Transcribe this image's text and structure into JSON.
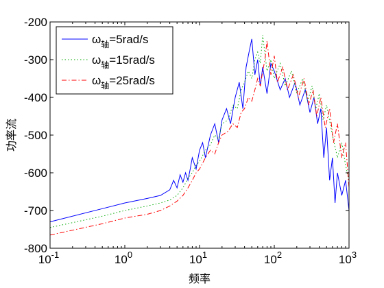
{
  "chart_data": {
    "type": "line",
    "title": "",
    "xlabel": "频率",
    "ylabel": "功率流",
    "xscale": "log",
    "xlim": [
      0.1,
      1000
    ],
    "ylim": [
      -800,
      -200
    ],
    "x_ticks": [
      {
        "value": 0.1,
        "base": "10",
        "exp": "-1"
      },
      {
        "value": 1,
        "base": "10",
        "exp": "0"
      },
      {
        "value": 10,
        "base": "10",
        "exp": "1"
      },
      {
        "value": 100,
        "base": "10",
        "exp": "2"
      },
      {
        "value": 1000,
        "base": "10",
        "exp": "3"
      }
    ],
    "y_ticks": [
      -800,
      -700,
      -600,
      -500,
      -400,
      -300,
      -200
    ],
    "grid": false,
    "legend_position": "top-left",
    "series": [
      {
        "name": "ω轴=5rad/s",
        "legend": {
          "sym": "ω",
          "sub": "轴",
          "rest": "=5rad/s"
        },
        "color": "#0000ff",
        "style": "solid",
        "x": [
          0.1,
          0.5,
          1,
          2,
          3,
          4,
          4.5,
          5,
          5.5,
          6,
          6.5,
          7,
          7.5,
          8,
          9,
          10,
          11,
          12,
          14,
          16,
          18,
          20,
          23,
          26,
          30,
          34,
          38,
          42,
          46,
          50,
          55,
          60,
          65,
          70,
          80,
          90,
          100,
          120,
          140,
          160,
          190,
          220,
          260,
          300,
          340,
          380,
          420,
          460,
          500,
          550,
          600,
          650,
          700,
          800,
          900,
          1000
        ],
        "y": [
          -730,
          -695,
          -680,
          -668,
          -660,
          -645,
          -620,
          -640,
          -605,
          -625,
          -600,
          -620,
          -590,
          -560,
          -590,
          -540,
          -520,
          -560,
          -500,
          -470,
          -520,
          -460,
          -430,
          -470,
          -400,
          -360,
          -430,
          -320,
          -280,
          -245,
          -340,
          -300,
          -370,
          -320,
          -390,
          -310,
          -330,
          -380,
          -350,
          -400,
          -360,
          -420,
          -380,
          -440,
          -400,
          -470,
          -430,
          -560,
          -480,
          -620,
          -560,
          -680,
          -600,
          -660,
          -620,
          -700
        ]
      },
      {
        "name": "ω轴=15rad/s",
        "legend": {
          "sym": "ω",
          "sub": "轴",
          "rest": "=15rad/s"
        },
        "color": "#00aa00",
        "style": "dotted",
        "x": [
          0.1,
          0.5,
          1,
          2,
          3,
          4,
          5,
          6,
          7,
          8,
          9,
          10,
          12,
          14,
          16,
          18,
          20,
          24,
          28,
          32,
          36,
          40,
          45,
          50,
          55,
          60,
          65,
          70,
          80,
          90,
          100,
          120,
          140,
          170,
          200,
          240,
          280,
          320,
          360,
          400,
          450,
          500,
          600,
          700,
          800,
          900,
          1000
        ],
        "y": [
          -745,
          -715,
          -700,
          -688,
          -680,
          -672,
          -660,
          -640,
          -615,
          -600,
          -580,
          -570,
          -540,
          -525,
          -500,
          -510,
          -470,
          -460,
          -420,
          -430,
          -380,
          -360,
          -330,
          -350,
          -300,
          -280,
          -310,
          -235,
          -330,
          -300,
          -350,
          -310,
          -370,
          -330,
          -390,
          -350,
          -410,
          -370,
          -430,
          -390,
          -460,
          -420,
          -500,
          -560,
          -520,
          -580,
          -620
        ]
      },
      {
        "name": "ω轴=25rad/s",
        "legend": {
          "sym": "ω",
          "sub": "轴",
          "rest": "=25rad/s"
        },
        "color": "#ff0000",
        "style": "dashdot",
        "x": [
          0.1,
          0.5,
          1,
          2,
          3,
          4,
          5,
          6,
          7,
          8,
          9,
          10,
          12,
          14,
          16,
          18,
          20,
          24,
          28,
          32,
          36,
          40,
          45,
          50,
          55,
          60,
          65,
          70,
          75,
          80,
          90,
          100,
          110,
          130,
          150,
          180,
          210,
          250,
          290,
          330,
          370,
          420,
          480,
          550,
          620,
          700,
          800,
          900,
          1000
        ],
        "y": [
          -765,
          -735,
          -720,
          -710,
          -700,
          -688,
          -675,
          -660,
          -640,
          -620,
          -600,
          -590,
          -560,
          -540,
          -550,
          -520,
          -500,
          -490,
          -470,
          -480,
          -440,
          -430,
          -400,
          -410,
          -380,
          -350,
          -370,
          -330,
          -300,
          -250,
          -340,
          -290,
          -360,
          -320,
          -380,
          -340,
          -400,
          -350,
          -420,
          -380,
          -450,
          -400,
          -480,
          -430,
          -520,
          -470,
          -560,
          -520,
          -640
        ]
      }
    ]
  }
}
